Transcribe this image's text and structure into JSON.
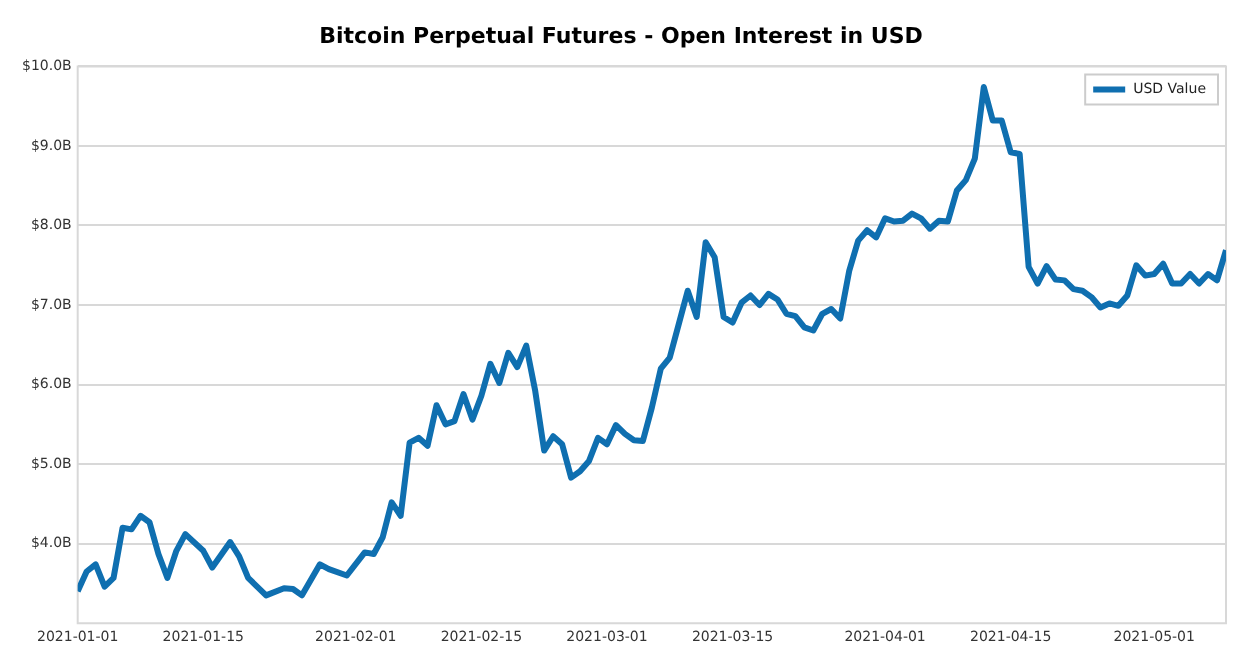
{
  "chart_data": {
    "type": "line",
    "title": "Bitcoin Perpetual Futures - Open Interest in USD",
    "x": [
      "2021-01-01",
      "2021-01-02",
      "2021-01-03",
      "2021-01-04",
      "2021-01-05",
      "2021-01-06",
      "2021-01-07",
      "2021-01-08",
      "2021-01-09",
      "2021-01-10",
      "2021-01-11",
      "2021-01-12",
      "2021-01-13",
      "2021-01-15",
      "2021-01-16",
      "2021-01-18",
      "2021-01-19",
      "2021-01-20",
      "2021-01-22",
      "2021-01-24",
      "2021-01-25",
      "2021-01-26",
      "2021-01-28",
      "2021-01-29",
      "2021-01-31",
      "2021-02-02",
      "2021-02-03",
      "2021-02-04",
      "2021-02-05",
      "2021-02-06",
      "2021-02-07",
      "2021-02-08",
      "2021-02-09",
      "2021-02-10",
      "2021-02-11",
      "2021-02-12",
      "2021-02-13",
      "2021-02-14",
      "2021-02-15",
      "2021-02-16",
      "2021-02-17",
      "2021-02-18",
      "2021-02-19",
      "2021-02-20",
      "2021-02-21",
      "2021-02-22",
      "2021-02-23",
      "2021-02-24",
      "2021-02-25",
      "2021-02-26",
      "2021-02-27",
      "2021-02-28",
      "2021-03-01",
      "2021-03-02",
      "2021-03-03",
      "2021-03-04",
      "2021-03-05",
      "2021-03-06",
      "2021-03-07",
      "2021-03-08",
      "2021-03-09",
      "2021-03-10",
      "2021-03-11",
      "2021-03-12",
      "2021-03-13",
      "2021-03-14",
      "2021-03-15",
      "2021-03-16",
      "2021-03-17",
      "2021-03-18",
      "2021-03-19",
      "2021-03-20",
      "2021-03-21",
      "2021-03-22",
      "2021-03-23",
      "2021-03-24",
      "2021-03-25",
      "2021-03-26",
      "2021-03-27",
      "2021-03-28",
      "2021-03-29",
      "2021-03-30",
      "2021-03-31",
      "2021-04-01",
      "2021-04-02",
      "2021-04-03",
      "2021-04-04",
      "2021-04-05",
      "2021-04-06",
      "2021-04-07",
      "2021-04-08",
      "2021-04-09",
      "2021-04-10",
      "2021-04-11",
      "2021-04-12",
      "2021-04-13",
      "2021-04-14",
      "2021-04-15",
      "2021-04-16",
      "2021-04-17",
      "2021-04-18",
      "2021-04-19",
      "2021-04-20",
      "2021-04-21",
      "2021-04-22",
      "2021-04-23",
      "2021-04-24",
      "2021-04-25",
      "2021-04-26",
      "2021-04-27",
      "2021-04-28",
      "2021-04-29",
      "2021-04-30",
      "2021-05-01",
      "2021-05-02",
      "2021-05-03",
      "2021-05-04",
      "2021-05-05",
      "2021-05-06",
      "2021-05-07",
      "2021-05-08",
      "2021-05-09"
    ],
    "series": [
      {
        "name": "USD Value",
        "color": "#0f6fb0",
        "values": [
          3.4,
          3.65,
          3.74,
          3.46,
          3.57,
          4.2,
          4.18,
          4.35,
          4.27,
          3.87,
          3.57,
          3.91,
          4.12,
          3.91,
          3.7,
          4.02,
          3.84,
          3.57,
          3.35,
          3.44,
          3.43,
          3.35,
          3.74,
          3.68,
          3.6,
          3.89,
          3.87,
          4.08,
          4.52,
          4.35,
          5.27,
          5.33,
          5.23,
          5.74,
          5.5,
          5.54,
          5.88,
          5.56,
          5.86,
          6.26,
          6.02,
          6.4,
          6.22,
          6.49,
          5.92,
          5.17,
          5.35,
          5.25,
          4.83,
          4.91,
          5.04,
          5.33,
          5.25,
          5.49,
          5.38,
          5.3,
          5.29,
          5.71,
          6.2,
          6.34,
          6.76,
          7.18,
          6.85,
          7.79,
          7.6,
          6.85,
          6.78,
          7.03,
          7.12,
          7.0,
          7.14,
          7.07,
          6.89,
          6.86,
          6.72,
          6.68,
          6.89,
          6.95,
          6.83,
          7.43,
          7.81,
          7.94,
          7.85,
          8.09,
          8.05,
          8.06,
          8.15,
          8.09,
          7.96,
          8.06,
          8.05,
          8.44,
          8.57,
          8.84,
          9.74,
          9.32,
          9.32,
          8.92,
          8.9,
          7.48,
          7.27,
          7.49,
          7.32,
          7.31,
          7.2,
          7.18,
          7.1,
          6.97,
          7.02,
          6.99,
          7.12,
          7.5,
          7.37,
          7.39,
          7.52,
          7.27,
          7.27,
          7.39,
          7.27,
          7.39,
          7.31,
          7.69
        ]
      }
    ],
    "xlim": [
      "2021-01-01",
      "2021-05-09"
    ],
    "xticks": [
      "2021-01-01",
      "2021-01-15",
      "2021-02-01",
      "2021-02-15",
      "2021-03-01",
      "2021-03-15",
      "2021-04-01",
      "2021-04-15",
      "2021-05-01"
    ],
    "ylim": [
      3.0,
      10.0
    ],
    "yticks": [
      {
        "value": 4,
        "label": "$4.0B"
      },
      {
        "value": 5,
        "label": "$5.0B"
      },
      {
        "value": 6,
        "label": "$6.0B"
      },
      {
        "value": 7,
        "label": "$7.0B"
      },
      {
        "value": 8,
        "label": "$8.0B"
      },
      {
        "value": 9,
        "label": "$9.0B"
      },
      {
        "value": 10,
        "label": "$10.0B"
      }
    ],
    "grid": "y",
    "legend": "top right",
    "marker": "none",
    "line_style": "solid"
  }
}
